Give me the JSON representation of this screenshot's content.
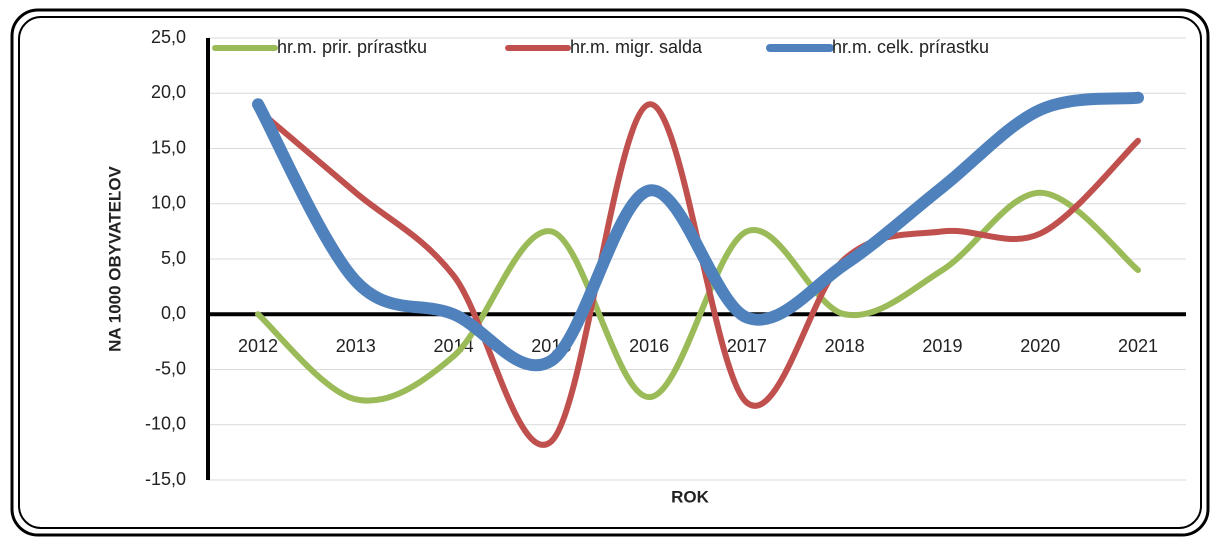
{
  "chart_data": {
    "type": "line",
    "x_label": "ROK",
    "y_label": "NA 1000 OBYVATEĽOV",
    "categories": [
      "2012",
      "2013",
      "2014",
      "2015",
      "2016",
      "2017",
      "2018",
      "2019",
      "2020",
      "2021"
    ],
    "series": [
      {
        "name": "hr.m. prir. prírastku",
        "color": "#9bbb59",
        "width": 6,
        "values": [
          0,
          -7.7,
          -3.8,
          7.5,
          -7.5,
          7.5,
          0,
          4,
          11,
          4
        ]
      },
      {
        "name": "hr.m. migr. salda",
        "color": "#c0504d",
        "width": 6,
        "values": [
          18.5,
          11,
          3.5,
          -11.5,
          19,
          -8,
          5,
          7.5,
          7.3,
          15.7
        ]
      },
      {
        "name": "hr.m. celk. prírastku",
        "color": "#4f81bd",
        "width": 12,
        "values": [
          19,
          3,
          0,
          -4.2,
          11.2,
          -0.3,
          4.5,
          11.5,
          18.5,
          19.6
        ]
      }
    ],
    "ylim": [
      -15,
      25
    ],
    "yticks": [
      {
        "value": -15,
        "label": "-15,0"
      },
      {
        "value": -10,
        "label": "-10,0"
      },
      {
        "value": -5,
        "label": "-5,0"
      },
      {
        "value": 0,
        "label": "0,0"
      },
      {
        "value": 5,
        "label": "5,0"
      },
      {
        "value": 10,
        "label": "10,0"
      },
      {
        "value": 15,
        "label": "15,0"
      },
      {
        "value": 20,
        "label": "20,0"
      },
      {
        "value": 25,
        "label": "25,0"
      }
    ],
    "grid": true,
    "smooth": true,
    "legend": "top"
  }
}
